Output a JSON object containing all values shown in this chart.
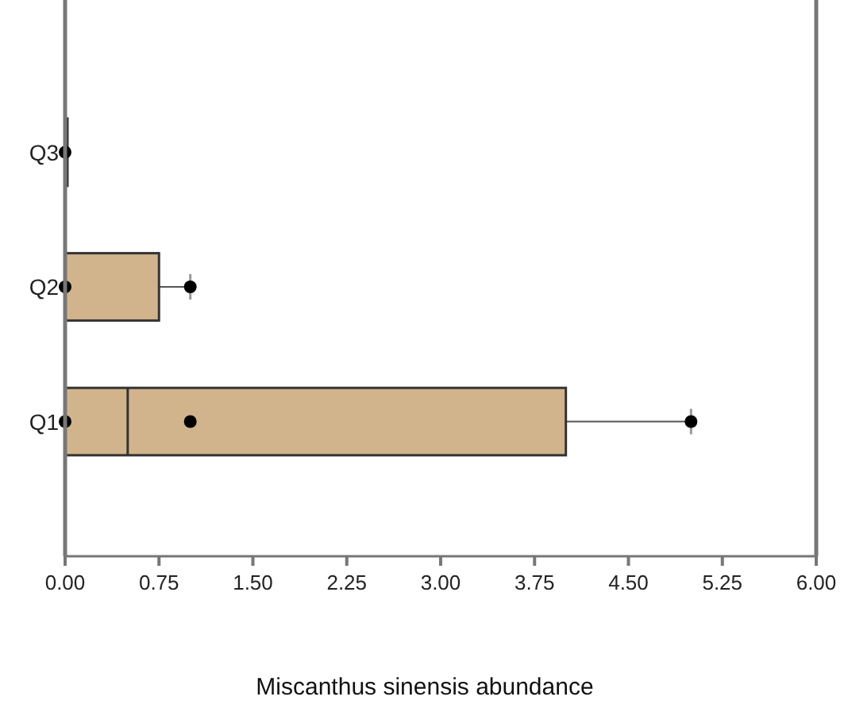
{
  "chart_data": {
    "type": "box",
    "orientation": "horizontal",
    "xlabel": "Miscanthus sinensis abundance",
    "categories": [
      "Q3",
      "Q2",
      "Q1"
    ],
    "color": "#d2b48c",
    "boxes": [
      {
        "low": 0,
        "q1": 0,
        "median": 0,
        "q3": 0,
        "high": 0
      },
      {
        "low": 0,
        "q1": 0,
        "median": 0,
        "q3": 0.75,
        "high": 1
      },
      {
        "low": 0,
        "q1": 0,
        "median": 0.5,
        "q3": 4,
        "high": 5
      }
    ],
    "series": [
      {
        "type": "scatter",
        "color": "#000000",
        "x": [
          "Q3",
          "Q2",
          "Q2",
          "Q1",
          "Q1",
          "Q1"
        ],
        "values": [
          0,
          0,
          1,
          0,
          1,
          5
        ]
      }
    ],
    "xlim": [
      0,
      6
    ],
    "xticks": [
      {
        "value": 0,
        "label": "0.00"
      },
      {
        "value": 0.75,
        "label": "0.75"
      },
      {
        "value": 1.5,
        "label": "1.50"
      },
      {
        "value": 2.25,
        "label": "2.25"
      },
      {
        "value": 3,
        "label": "3.00"
      },
      {
        "value": 3.75,
        "label": "3.75"
      },
      {
        "value": 4.5,
        "label": "4.50"
      },
      {
        "value": 5.25,
        "label": "5.25"
      },
      {
        "value": 6,
        "label": "6.00"
      }
    ],
    "grid": false
  }
}
